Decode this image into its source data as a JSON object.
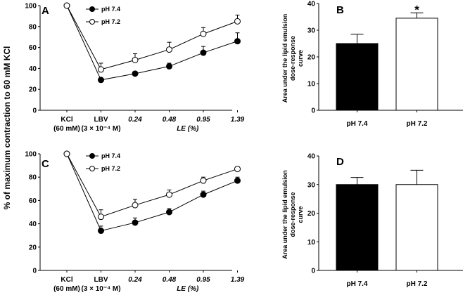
{
  "figure": {
    "shared_ylabel": "% of maximum contraction to 60 mM KCl"
  },
  "chart_data": [
    {
      "id": "A",
      "type": "line",
      "title": "",
      "xlabel": "LE (%)",
      "ylabel": "% of maximum contraction to 60 mM KCl",
      "ylim": [
        0,
        100
      ],
      "yticks": [
        0,
        20,
        40,
        60,
        80,
        100
      ],
      "x_categories": [
        {
          "line1": "KCl",
          "line2": "(60 mM)",
          "italic": false
        },
        {
          "line1": "LBV",
          "line2": "(3 × 10⁻⁴ M)",
          "italic": false
        },
        {
          "line1": "0.24",
          "line2": "",
          "italic": true
        },
        {
          "line1": "0.48",
          "line2": "",
          "italic": true
        },
        {
          "line1": "0.95",
          "line2": "",
          "italic": true
        },
        {
          "line1": "1.39",
          "line2": "",
          "italic": true
        }
      ],
      "series": [
        {
          "name": "pH 7.4",
          "marker": "filled",
          "values": [
            100,
            29,
            35,
            42,
            55,
            66
          ],
          "errors": [
            0,
            2,
            2,
            3,
            6,
            8
          ]
        },
        {
          "name": "pH 7.2",
          "marker": "open",
          "values": [
            100,
            39,
            48,
            58,
            73,
            85
          ],
          "errors": [
            0,
            6,
            6,
            7,
            6,
            6
          ]
        }
      ],
      "legend": "top-left"
    },
    {
      "id": "B",
      "type": "bar",
      "title": "",
      "xlabel": "",
      "ylabel": "Area under the lipid emulsion dose-response curve",
      "ylim": [
        0,
        40
      ],
      "yticks": [
        0,
        10,
        20,
        30,
        40
      ],
      "categories": [
        "pH 7.4",
        "pH 7.2"
      ],
      "values": [
        25,
        34.5
      ],
      "errors": [
        3.5,
        2
      ],
      "fills": [
        "#000000",
        "#ffffff"
      ],
      "annotations": [
        "",
        "*"
      ]
    },
    {
      "id": "C",
      "type": "line",
      "title": "",
      "xlabel": "LE (%)",
      "ylabel": "% of maximum contraction to 60 mM KCl",
      "ylim": [
        0,
        100
      ],
      "yticks": [
        0,
        20,
        40,
        60,
        80,
        100
      ],
      "x_categories": [
        {
          "line1": "KCl",
          "line2": "(60 mM)",
          "italic": false
        },
        {
          "line1": "LBV",
          "line2": "(3 × 10⁻⁴ M)",
          "italic": false
        },
        {
          "line1": "0.24",
          "line2": "",
          "italic": true
        },
        {
          "line1": "0.48",
          "line2": "",
          "italic": true
        },
        {
          "line1": "0.95",
          "line2": "",
          "italic": true
        },
        {
          "line1": "1.39",
          "line2": "",
          "italic": true
        }
      ],
      "series": [
        {
          "name": "pH 7.4",
          "marker": "filled",
          "values": [
            100,
            34,
            41,
            50,
            65,
            77
          ],
          "errors": [
            0,
            4,
            4,
            3,
            3,
            3
          ]
        },
        {
          "name": "pH 7.2",
          "marker": "open",
          "values": [
            100,
            46,
            56,
            65,
            77,
            87
          ],
          "errors": [
            0,
            6,
            5,
            4,
            3,
            2
          ]
        }
      ],
      "legend": "top-left"
    },
    {
      "id": "D",
      "type": "bar",
      "title": "",
      "xlabel": "",
      "ylabel": "Area under the lipid emulsion dose-response curve",
      "ylim": [
        0,
        40
      ],
      "yticks": [
        0,
        10,
        20,
        30,
        40
      ],
      "categories": [
        "pH 7.4",
        "pH 7.2"
      ],
      "values": [
        30,
        30
      ],
      "errors": [
        2.5,
        5
      ],
      "fills": [
        "#000000",
        "#ffffff"
      ],
      "annotations": [
        "",
        ""
      ]
    }
  ]
}
